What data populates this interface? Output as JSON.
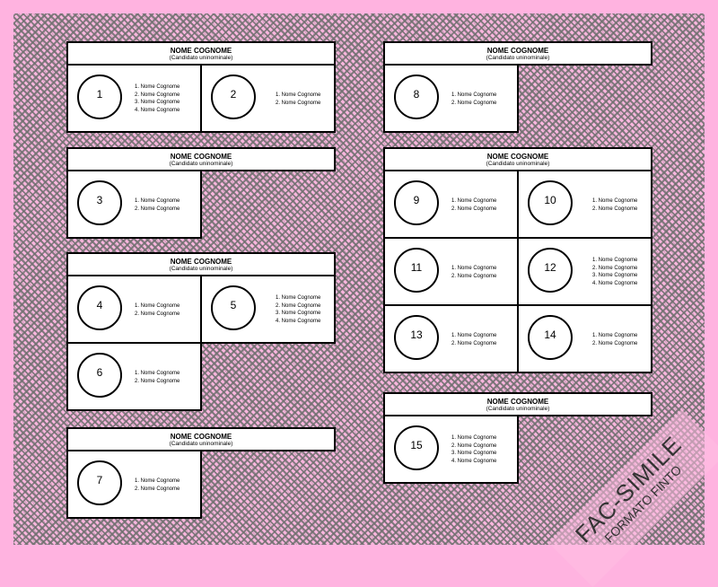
{
  "header": {
    "title": "NOME COGNOME",
    "subtitle": "(Candidato uninominale)"
  },
  "watermark": {
    "line1": "FAC-SIMILE",
    "line2": "FORMATO FINTO"
  },
  "colors": {
    "border": "#ffb3e0",
    "hatch": "#707070",
    "panel": "#ffffff"
  },
  "blocks": [
    {
      "cells": [
        {
          "number": "1",
          "candidates": [
            "1. Nome Cognome",
            "2. Nome Cognome",
            "3. Nome Cognome",
            "4. Nome Cognome"
          ]
        },
        {
          "number": "2",
          "candidates": [
            "1. Nome Cognome",
            "2. Nome Cognome"
          ]
        }
      ]
    },
    {
      "cells": [
        {
          "number": "3",
          "candidates": [
            "1. Nome Cognome",
            "2. Nome Cognome"
          ]
        }
      ]
    },
    {
      "cells": [
        {
          "number": "4",
          "candidates": [
            "1. Nome Cognome",
            "2. Nome Cognome"
          ]
        },
        {
          "number": "5",
          "candidates": [
            "1. Nome Cognome",
            "2. Nome Cognome",
            "3. Nome Cognome",
            "4. Nome Cognome"
          ]
        },
        {
          "number": "6",
          "candidates": [
            "1. Nome Cognome",
            "2. Nome Cognome"
          ]
        }
      ]
    },
    {
      "cells": [
        {
          "number": "7",
          "candidates": [
            "1. Nome Cognome",
            "2. Nome Cognome"
          ]
        }
      ]
    },
    {
      "cells": [
        {
          "number": "8",
          "candidates": [
            "1. Nome Cognome",
            "2. Nome Cognome"
          ]
        }
      ]
    },
    {
      "cells": [
        {
          "number": "9",
          "candidates": [
            "1. Nome Cognome",
            "2. Nome Cognome"
          ]
        },
        {
          "number": "10",
          "candidates": [
            "1. Nome Cognome",
            "2. Nome Cognome"
          ]
        },
        {
          "number": "11",
          "candidates": [
            "1. Nome Cognome",
            "2. Nome Cognome"
          ]
        },
        {
          "number": "12",
          "candidates": [
            "1. Nome Cognome",
            "2. Nome Cognome",
            "3. Nome Cognome",
            "4. Nome Cognome"
          ]
        },
        {
          "number": "13",
          "candidates": [
            "1. Nome Cognome",
            "2. Nome Cognome"
          ]
        },
        {
          "number": "14",
          "candidates": [
            "1. Nome Cognome",
            "2. Nome Cognome"
          ]
        }
      ]
    },
    {
      "cells": [
        {
          "number": "15",
          "candidates": [
            "1. Nome Cognome",
            "2. Nome Cognome",
            "3. Nome Cognome",
            "4. Nome Cognome"
          ]
        }
      ]
    }
  ]
}
